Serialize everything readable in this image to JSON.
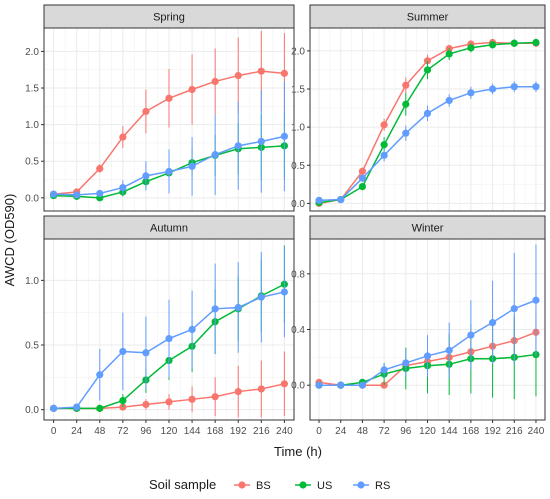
{
  "chart_data": {
    "type": "line",
    "xlabel": "Time (h)",
    "ylabel": "AWCD (OD590)",
    "x": [
      0,
      24,
      48,
      72,
      96,
      120,
      144,
      168,
      192,
      216,
      240
    ],
    "x_ticks": [
      "0",
      "24",
      "48",
      "72",
      "96",
      "120",
      "144",
      "168",
      "192",
      "216",
      "240"
    ],
    "legend": {
      "title": "Soil sample",
      "placement": "bottom",
      "items": [
        {
          "name": "BS",
          "color": "#F8766D"
        },
        {
          "name": "US",
          "color": "#00BA38"
        },
        {
          "name": "RS",
          "color": "#619CFF"
        }
      ]
    },
    "grid": true,
    "panels": [
      {
        "title": "Spring",
        "ylim": [
          -0.18,
          2.32
        ],
        "y_ticks": [
          0.0,
          0.5,
          1.0,
          1.5,
          2.0
        ],
        "y_tick_labels": [
          "0.0",
          "0.5",
          "1.0",
          "1.5",
          "2.0"
        ],
        "series": [
          {
            "name": "BS",
            "values": [
              0.05,
              0.08,
              0.4,
              0.83,
              1.18,
              1.36,
              1.48,
              1.59,
              1.67,
              1.73,
              1.7
            ],
            "err": [
              0.03,
              0.04,
              0.06,
              0.15,
              0.3,
              0.4,
              0.48,
              0.45,
              0.52,
              0.55,
              0.55
            ]
          },
          {
            "name": "US",
            "values": [
              0.03,
              0.02,
              0.0,
              0.08,
              0.22,
              0.34,
              0.48,
              0.58,
              0.67,
              0.69,
              0.71
            ],
            "err": [
              0.02,
              0.02,
              0.02,
              0.06,
              0.1,
              0.15,
              0.2,
              0.28,
              0.35,
              0.45,
              0.45
            ]
          },
          {
            "name": "RS",
            "values": [
              0.05,
              0.04,
              0.06,
              0.14,
              0.3,
              0.36,
              0.43,
              0.59,
              0.71,
              0.77,
              0.84
            ],
            "err": [
              0.02,
              0.02,
              0.03,
              0.1,
              0.2,
              0.3,
              0.4,
              0.55,
              0.6,
              0.7,
              0.75
            ]
          }
        ]
      },
      {
        "title": "Summer",
        "ylim": [
          -0.1,
          2.3
        ],
        "y_ticks": [
          0.0,
          0.5,
          1.0,
          1.5,
          2.0
        ],
        "y_tick_labels": [
          "0.0",
          "0.5",
          "1.0",
          "1.5",
          "2.0"
        ],
        "series": [
          {
            "name": "BS",
            "values": [
              0.0,
              0.05,
              0.42,
              1.03,
              1.55,
              1.87,
              2.03,
              2.09,
              2.11,
              2.1,
              2.1
            ],
            "err": [
              0.02,
              0.02,
              0.05,
              0.08,
              0.1,
              0.08,
              0.05,
              0.04,
              0.04,
              0.04,
              0.04
            ]
          },
          {
            "name": "US",
            "values": [
              0.01,
              0.05,
              0.22,
              0.77,
              1.3,
              1.75,
              1.96,
              2.04,
              2.08,
              2.1,
              2.11
            ],
            "err": [
              0.02,
              0.02,
              0.04,
              0.1,
              0.15,
              0.12,
              0.08,
              0.06,
              0.05,
              0.05,
              0.05
            ]
          },
          {
            "name": "RS",
            "values": [
              0.04,
              0.05,
              0.33,
              0.63,
              0.92,
              1.18,
              1.35,
              1.45,
              1.5,
              1.53,
              1.53
            ],
            "err": [
              0.02,
              0.02,
              0.05,
              0.08,
              0.1,
              0.1,
              0.08,
              0.08,
              0.07,
              0.07,
              0.07
            ]
          }
        ]
      },
      {
        "title": "Autumn",
        "ylim": [
          -0.08,
          1.32
        ],
        "y_ticks": [
          0.0,
          0.5,
          1.0
        ],
        "y_tick_labels": [
          "0.0",
          "0.5",
          "1.0"
        ],
        "series": [
          {
            "name": "BS",
            "values": [
              0.01,
              0.01,
              0.01,
              0.02,
              0.04,
              0.06,
              0.08,
              0.1,
              0.14,
              0.16,
              0.2
            ],
            "err": [
              0.01,
              0.01,
              0.01,
              0.02,
              0.04,
              0.06,
              0.1,
              0.15,
              0.2,
              0.22,
              0.25
            ]
          },
          {
            "name": "US",
            "values": [
              0.01,
              0.01,
              0.01,
              0.07,
              0.23,
              0.38,
              0.49,
              0.68,
              0.78,
              0.88,
              0.97
            ],
            "err": [
              0.01,
              0.01,
              0.01,
              0.05,
              0.1,
              0.15,
              0.2,
              0.25,
              0.25,
              0.28,
              0.3
            ]
          },
          {
            "name": "RS",
            "values": [
              0.01,
              0.02,
              0.27,
              0.45,
              0.44,
              0.55,
              0.62,
              0.78,
              0.79,
              0.87,
              0.91
            ],
            "err": [
              0.01,
              0.02,
              0.2,
              0.3,
              0.28,
              0.3,
              0.3,
              0.35,
              0.35,
              0.35,
              0.35
            ]
          }
        ]
      },
      {
        "title": "Winter",
        "ylim": [
          -0.25,
          1.05
        ],
        "y_ticks": [
          0.0,
          0.4,
          0.8
        ],
        "y_tick_labels": [
          "0.0",
          "0.4",
          "0.8"
        ],
        "series": [
          {
            "name": "BS",
            "values": [
              0.02,
              0.0,
              0.0,
              0.0,
              0.14,
              0.17,
              0.2,
              0.24,
              0.28,
              0.32,
              0.38
            ],
            "err": [
              0.01,
              0.01,
              0.01,
              0.02,
              0.05,
              0.08,
              0.1,
              0.12,
              0.14,
              0.16,
              0.18
            ]
          },
          {
            "name": "US",
            "values": [
              0.0,
              0.0,
              0.02,
              0.08,
              0.12,
              0.14,
              0.15,
              0.19,
              0.19,
              0.2,
              0.22
            ],
            "err": [
              0.01,
              0.01,
              0.02,
              0.08,
              0.15,
              0.2,
              0.22,
              0.25,
              0.28,
              0.3,
              0.3
            ]
          },
          {
            "name": "RS",
            "values": [
              0.0,
              0.0,
              0.0,
              0.11,
              0.16,
              0.21,
              0.25,
              0.36,
              0.45,
              0.55,
              0.61
            ],
            "err": [
              0.01,
              0.01,
              0.02,
              0.05,
              0.1,
              0.15,
              0.2,
              0.25,
              0.3,
              0.4,
              0.4
            ]
          }
        ]
      }
    ]
  }
}
